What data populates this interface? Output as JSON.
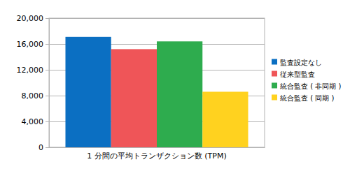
{
  "chart_data": {
    "type": "bar",
    "categories": [
      "1 分間の平均トランザクション数 (TPM)"
    ],
    "series": [
      {
        "name": "監査設定なし",
        "color": "#0b6fc2",
        "values": [
          17100
        ]
      },
      {
        "name": "従来型監査",
        "color": "#ef5558",
        "values": [
          15200
        ]
      },
      {
        "name": "統合監査 ( 非同期 )",
        "color": "#2eac4e",
        "values": [
          16400
        ]
      },
      {
        "name": "統合監査 ( 同期 )",
        "color": "#ffd21f",
        "values": [
          8600
        ]
      }
    ],
    "ylim": [
      0,
      20000
    ],
    "yticks": [
      0,
      {
        "value": 4000,
        "label": "4,000"
      },
      {
        "value": 8000,
        "label": "8,000"
      },
      {
        "value": 12000,
        "label": "12,000"
      },
      {
        "value": 16000,
        "label": "16,000"
      },
      {
        "value": 20000,
        "label": "20,000"
      }
    ],
    "grid": true,
    "legend": "right"
  }
}
